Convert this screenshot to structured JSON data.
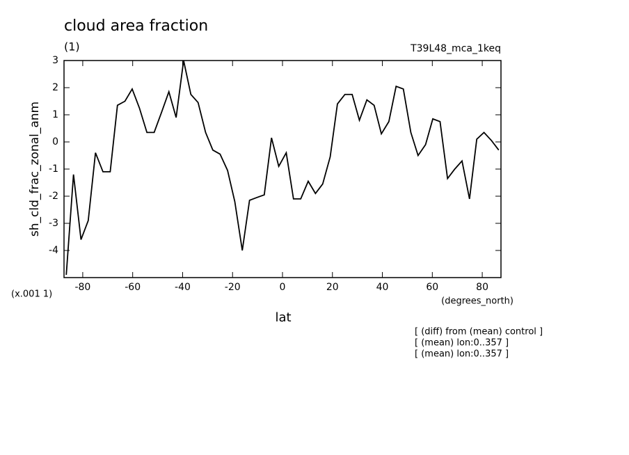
{
  "chart_data": {
    "type": "line",
    "title": "cloud area fraction",
    "subtitle": "(1)",
    "run_label": "T39L48_mca_1keq",
    "y_label": "sh_cld_frac_zonal_anm",
    "y_scale_note": "(x.001 1)",
    "x_units": "(degrees_north)",
    "x_label": "lat",
    "notes": [
      "[ (diff) from (mean) control ]",
      "[ (mean) lon:0..357 ]",
      "[ (mean) lon:0..357 ]"
    ],
    "x": [
      -86.6,
      -83.7,
      -80.7,
      -77.8,
      -74.9,
      -71.9,
      -69.0,
      -66.1,
      -63.1,
      -60.2,
      -57.3,
      -54.3,
      -51.4,
      -48.4,
      -45.5,
      -42.6,
      -39.6,
      -36.7,
      -33.8,
      -30.8,
      -27.9,
      -25.0,
      -22.0,
      -19.1,
      -16.1,
      -13.2,
      -10.3,
      -7.3,
      -4.4,
      -1.5,
      1.5,
      4.4,
      7.3,
      10.3,
      13.2,
      16.1,
      19.1,
      22.0,
      25.0,
      27.9,
      30.8,
      33.8,
      36.7,
      39.6,
      42.6,
      45.5,
      48.4,
      51.4,
      54.3,
      57.3,
      60.2,
      63.1,
      66.1,
      69.0,
      71.9,
      74.9,
      77.8,
      80.7,
      83.7,
      86.6
    ],
    "series": [
      {
        "color": "#000000",
        "values": [
          -4.9,
          -1.2,
          -3.6,
          -2.9,
          -0.4,
          -1.1,
          -1.1,
          1.35,
          1.5,
          1.95,
          1.25,
          0.35,
          0.35,
          1.1,
          1.85,
          0.9,
          3.0,
          1.75,
          1.45,
          0.35,
          -0.3,
          -0.45,
          -1.05,
          -2.2,
          -4.0,
          -2.15,
          -2.05,
          -1.95,
          0.15,
          -0.9,
          -0.4,
          -2.1,
          -2.1,
          -1.45,
          -1.9,
          -1.55,
          -0.55,
          1.4,
          1.75,
          1.75,
          0.8,
          1.55,
          1.35,
          0.3,
          0.75,
          2.05,
          1.95,
          0.35,
          -0.5,
          -0.1,
          0.85,
          0.75,
          -1.35,
          -1.0,
          -0.7,
          -2.1,
          0.1,
          0.35,
          0.05,
          -0.3
        ]
      }
    ],
    "xlim": [
      -87.5,
      87.5
    ],
    "ylim": [
      -5,
      3
    ],
    "xticks": [
      -80,
      -60,
      -40,
      -20,
      0,
      20,
      40,
      60,
      80
    ],
    "yticks": [
      -4,
      -3,
      -2,
      -1,
      0,
      1,
      2,
      3
    ]
  }
}
